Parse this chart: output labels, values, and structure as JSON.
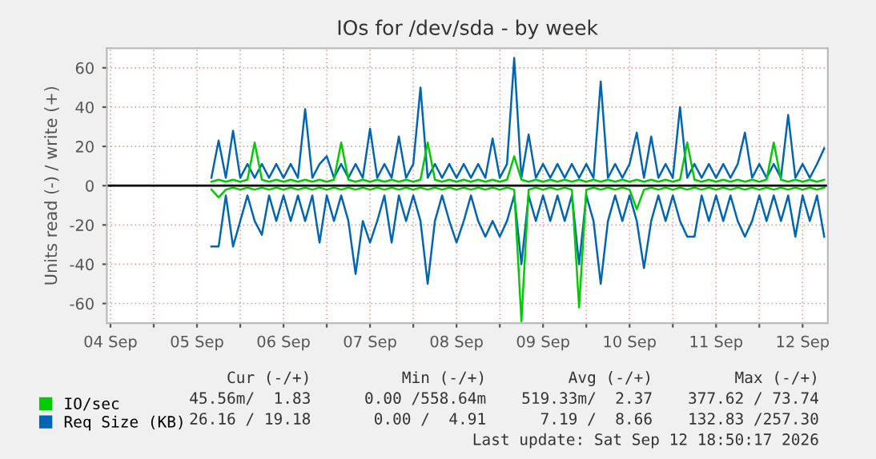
{
  "chart_data": {
    "type": "line",
    "title": "IOs for /dev/sda - by week",
    "ylabel": "Units read (-) / write (+)",
    "x": [
      "2026-09-05T16:00",
      "2026-09-05T18:00",
      "2026-09-05T20:00",
      "2026-09-05T22:00",
      "2026-09-06T00:00",
      "2026-09-06T02:00",
      "2026-09-06T04:00",
      "2026-09-06T06:00",
      "2026-09-06T08:00",
      "2026-09-06T10:00",
      "2026-09-06T12:00",
      "2026-09-06T14:00",
      "2026-09-06T16:00",
      "2026-09-06T18:00",
      "2026-09-06T20:00",
      "2026-09-06T22:00",
      "2026-09-07T00:00",
      "2026-09-07T02:00",
      "2026-09-07T04:00",
      "2026-09-07T06:00",
      "2026-09-07T08:00",
      "2026-09-07T10:00",
      "2026-09-07T12:00",
      "2026-09-07T14:00",
      "2026-09-07T16:00",
      "2026-09-07T18:00",
      "2026-09-07T20:00",
      "2026-09-07T22:00",
      "2026-09-08T00:00",
      "2026-09-08T02:00",
      "2026-09-08T04:00",
      "2026-09-08T06:00",
      "2026-09-08T08:00",
      "2026-09-08T10:00",
      "2026-09-08T12:00",
      "2026-09-08T14:00",
      "2026-09-08T16:00",
      "2026-09-08T18:00",
      "2026-09-08T20:00",
      "2026-09-08T22:00",
      "2026-09-09T00:00",
      "2026-09-09T02:00",
      "2026-09-09T04:00",
      "2026-09-09T06:00",
      "2026-09-09T08:00",
      "2026-09-09T10:00",
      "2026-09-09T12:00",
      "2026-09-09T14:00",
      "2026-09-09T16:00",
      "2026-09-09T18:00",
      "2026-09-09T20:00",
      "2026-09-09T22:00",
      "2026-09-10T00:00",
      "2026-09-10T02:00",
      "2026-09-10T04:00",
      "2026-09-10T06:00",
      "2026-09-10T08:00",
      "2026-09-10T10:00",
      "2026-09-10T12:00",
      "2026-09-10T14:00",
      "2026-09-10T16:00",
      "2026-09-10T18:00",
      "2026-09-10T20:00",
      "2026-09-10T22:00",
      "2026-09-11T00:00",
      "2026-09-11T02:00",
      "2026-09-11T04:00",
      "2026-09-11T06:00",
      "2026-09-11T08:00",
      "2026-09-11T10:00",
      "2026-09-11T12:00",
      "2026-09-11T14:00",
      "2026-09-11T16:00",
      "2026-09-11T18:00",
      "2026-09-11T20:00",
      "2026-09-11T22:00",
      "2026-09-12T00:00",
      "2026-09-12T02:00",
      "2026-09-12T04:00",
      "2026-09-12T06:00",
      "2026-09-12T08:00",
      "2026-09-12T10:00",
      "2026-09-12T12:00",
      "2026-09-12T14:00",
      "2026-09-12T16:00",
      "2026-09-12T18:00"
    ],
    "series": [
      {
        "name": "Req Size (KB)",
        "color": "#0066b3",
        "values": [
          4,
          23,
          4,
          28,
          4,
          11,
          4,
          11,
          4,
          11,
          4,
          11,
          4,
          39,
          4,
          11,
          15,
          4,
          11,
          4,
          11,
          4,
          29,
          4,
          11,
          4,
          25,
          4,
          11,
          50,
          4,
          11,
          4,
          11,
          4,
          11,
          4,
          11,
          4,
          24,
          4,
          11,
          65,
          4,
          26,
          4,
          11,
          4,
          11,
          4,
          11,
          4,
          11,
          4,
          53,
          4,
          11,
          4,
          11,
          27,
          4,
          25,
          4,
          11,
          4,
          40,
          4,
          11,
          4,
          11,
          4,
          11,
          4,
          11,
          27,
          4,
          11,
          4,
          11,
          4,
          36,
          4,
          11,
          4,
          11,
          19
        ]
      },
      {
        "color": "#0066b3",
        "values": [
          -31,
          -31,
          -5,
          -31,
          -18,
          -5,
          -18,
          -25,
          -5,
          -18,
          -5,
          -18,
          -5,
          -18,
          -5,
          -29,
          -5,
          -18,
          -5,
          -18,
          -45,
          -18,
          -29,
          -18,
          -5,
          -29,
          -5,
          -18,
          -5,
          -18,
          -50,
          -18,
          -5,
          -18,
          -29,
          -18,
          -5,
          -18,
          -26,
          -18,
          -26,
          -18,
          -5,
          -40,
          -5,
          -18,
          -5,
          -18,
          -5,
          -18,
          -5,
          -40,
          -5,
          -18,
          -50,
          -18,
          -5,
          -18,
          -5,
          -18,
          -42,
          -18,
          -5,
          -18,
          -5,
          -18,
          -26,
          -26,
          -5,
          -18,
          -5,
          -18,
          -5,
          -18,
          -26,
          -18,
          -5,
          -18,
          -5,
          -18,
          -5,
          -26,
          -5,
          -18,
          -5,
          -26
        ]
      },
      {
        "name": "IO/sec",
        "color": "#00cc00",
        "values": [
          2,
          3,
          2,
          3,
          2,
          3,
          22,
          3,
          2,
          3,
          2,
          3,
          2,
          3,
          2,
          3,
          2,
          3,
          22,
          3,
          2,
          3,
          2,
          3,
          2,
          3,
          2,
          3,
          2,
          3,
          22,
          3,
          2,
          3,
          2,
          3,
          2,
          3,
          2,
          3,
          2,
          3,
          15,
          3,
          2,
          3,
          2,
          3,
          2,
          3,
          2,
          3,
          2,
          3,
          2,
          3,
          2,
          3,
          2,
          3,
          2,
          3,
          2,
          3,
          2,
          3,
          22,
          3,
          2,
          3,
          2,
          3,
          2,
          3,
          2,
          3,
          2,
          3,
          22,
          3,
          2,
          3,
          2,
          3,
          2,
          3
        ]
      },
      {
        "color": "#00cc00",
        "values": [
          -2,
          -6,
          -2,
          -1,
          -2,
          -1,
          -2,
          -1,
          -2,
          -1,
          -2,
          -1,
          -2,
          -1,
          -2,
          -1,
          -2,
          -1,
          -2,
          -1,
          -2,
          -1,
          -2,
          -1,
          -2,
          -1,
          -2,
          -1,
          -2,
          -1,
          -2,
          -1,
          -2,
          -1,
          -2,
          -1,
          -2,
          -1,
          -2,
          -1,
          -2,
          -1,
          -2,
          -69,
          -2,
          -1,
          -2,
          -1,
          -2,
          -1,
          -2,
          -62,
          -2,
          -1,
          -2,
          -1,
          -2,
          -1,
          -2,
          -12,
          -2,
          -1,
          -2,
          -1,
          -2,
          -1,
          -2,
          -1,
          -2,
          -1,
          -2,
          -1,
          -2,
          -1,
          -2,
          -1,
          -2,
          -1,
          -2,
          -1,
          -2,
          -1,
          -2,
          -1,
          -2,
          -1
        ]
      }
    ],
    "xlim": [
      "2026-09-04T11:00",
      "2026-09-12T19:00"
    ],
    "xticks": [
      {
        "value": "2026-09-04T12:00",
        "label": "04 Sep"
      },
      {
        "value": "2026-09-05T00:00",
        "label": null
      },
      {
        "value": "2026-09-05T12:00",
        "label": "05 Sep"
      },
      {
        "value": "2026-09-06T00:00",
        "label": null
      },
      {
        "value": "2026-09-06T12:00",
        "label": "06 Sep"
      },
      {
        "value": "2026-09-07T00:00",
        "label": null
      },
      {
        "value": "2026-09-07T12:00",
        "label": "07 Sep"
      },
      {
        "value": "2026-09-08T00:00",
        "label": null
      },
      {
        "value": "2026-09-08T12:00",
        "label": "08 Sep"
      },
      {
        "value": "2026-09-09T00:00",
        "label": null
      },
      {
        "value": "2026-09-09T12:00",
        "label": "09 Sep"
      },
      {
        "value": "2026-09-10T00:00",
        "label": null
      },
      {
        "value": "2026-09-10T12:00",
        "label": "10 Sep"
      },
      {
        "value": "2026-09-11T00:00",
        "label": null
      },
      {
        "value": "2026-09-11T12:00",
        "label": "11 Sep"
      },
      {
        "value": "2026-09-12T00:00",
        "label": null
      },
      {
        "value": "2026-09-12T12:00",
        "label": "12 Sep"
      }
    ],
    "ylim": [
      -70,
      70
    ],
    "yticks": [
      -60,
      -40,
      -20,
      0,
      20,
      40,
      60
    ],
    "ref_lines": [
      {
        "axis": "y",
        "value": 0,
        "color": "#000000"
      }
    ],
    "grid": true,
    "legend": "bottom left",
    "annotations": [
      "Cur (-/+)",
      "Min (-/+)",
      "Avg (-/+)",
      "Max (-/+)",
      "45.56m/  1.83",
      "0.00 /558.64m",
      "519.33m/  2.37",
      "377.62 / 73.74",
      "26.16 / 19.18",
      "0.00 /  4.91",
      "7.19 /  8.66",
      "132.83 /257.30",
      "Last update: Sat Sep 12 18:50:17 2026"
    ]
  }
}
